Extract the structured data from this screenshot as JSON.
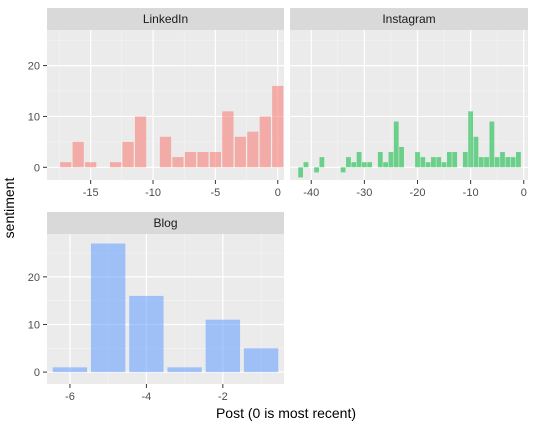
{
  "chart_data": {
    "type": "bar",
    "xlabel": "Post (0 is most recent)",
    "ylabel": "sentiment",
    "grid": true,
    "panel_background": "#ebebeb",
    "strip_background": "#d9d9d9",
    "panels": [
      {
        "name": "LinkedIn",
        "color": "#f8766d",
        "xlim": [
          -18.5,
          0.5
        ],
        "ylim": [
          -2.5,
          27
        ],
        "xticks": [
          -15,
          -10,
          -5,
          0
        ],
        "xtick_labels": [
          "-15",
          "-10",
          "-5",
          "0"
        ],
        "yticks": [
          0,
          10,
          20
        ],
        "ytick_labels": [
          "0",
          "10",
          "20"
        ],
        "x": [
          -18,
          -17,
          -16,
          -15,
          -14,
          -13,
          -12,
          -11,
          -10,
          -9,
          -8,
          -7,
          -6,
          -5,
          -4,
          -3,
          -2,
          -1,
          0
        ],
        "values": [
          0,
          1,
          5,
          1,
          0,
          1,
          5,
          10,
          0,
          6,
          2,
          3,
          3,
          3,
          11,
          6,
          7,
          10,
          16
        ]
      },
      {
        "name": "Instagram",
        "color": "#00ba38",
        "xlim": [
          -44,
          0.8
        ],
        "ylim": [
          -2.5,
          27
        ],
        "xticks": [
          -40,
          -30,
          -20,
          -10,
          0
        ],
        "xtick_labels": [
          "-40",
          "-30",
          "-20",
          "-10",
          "0"
        ],
        "yticks": [
          0,
          10,
          20
        ],
        "ytick_labels": [
          "0",
          "10",
          "20"
        ],
        "x": [
          -43,
          -42,
          -41,
          -40,
          -39,
          -38,
          -37,
          -36,
          -35,
          -34,
          -33,
          -32,
          -31,
          -30,
          -29,
          -28,
          -27,
          -26,
          -25,
          -24,
          -23,
          -22,
          -21,
          -20,
          -19,
          -18,
          -17,
          -16,
          -15,
          -14,
          -13,
          -12,
          -11,
          -10,
          -9,
          -8,
          -7,
          -6,
          -5,
          -4,
          -3,
          -2,
          -1,
          0
        ],
        "values": [
          0,
          -2,
          1,
          0,
          -1,
          2,
          0,
          0,
          0,
          -1,
          2,
          1,
          3,
          1,
          1,
          0,
          3,
          1,
          3,
          9,
          4,
          0,
          0,
          3,
          2,
          1,
          2,
          2,
          1,
          3,
          3,
          0,
          3,
          11,
          6,
          2,
          2,
          9,
          2,
          3,
          2,
          2,
          3,
          0
        ]
      },
      {
        "name": "Blog",
        "color": "#619cff",
        "xlim": [
          -6.6,
          -0.4
        ],
        "ylim": [
          -2.5,
          29
        ],
        "xticks": [
          -6,
          -4,
          -2
        ],
        "xtick_labels": [
          "-6",
          "-4",
          "-2"
        ],
        "yticks": [
          0,
          10,
          20
        ],
        "ytick_labels": [
          "0",
          "10",
          "20"
        ],
        "x": [
          -6,
          -5,
          -4,
          -3,
          -2,
          -1
        ],
        "values": [
          1,
          27,
          16,
          1,
          11,
          5
        ]
      }
    ]
  }
}
